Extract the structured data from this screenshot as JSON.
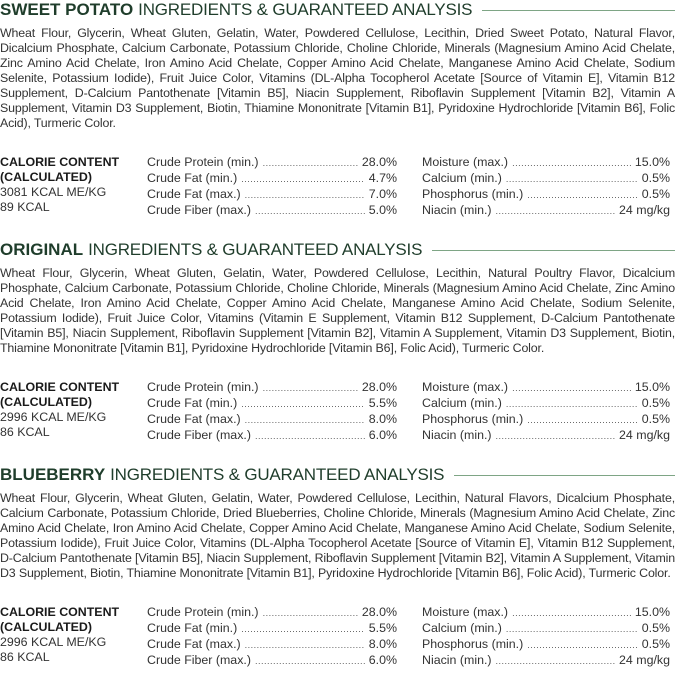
{
  "sections": [
    {
      "name": "SWEET POTATO",
      "title_rest": "INGREDIENTS & GUARANTEED ANALYSIS",
      "ingredients": "Wheat Flour, Glycerin, Wheat Gluten, Gelatin, Water, Powdered Cellulose, Lecithin, Dried Sweet Potato, Natural Flavor, Dicalcium Phosphate, Calcium Carbonate, Potassium Chloride, Choline Chloride, Minerals (Magnesium Amino Acid Chelate, Zinc Amino Acid Chelate, Iron Amino Acid Chelate, Copper Amino Acid Chelate, Manganese Amino Acid Chelate, Sodium Selenite, Potassium Iodide), Fruit Juice Color, Vitamins (DL-Alpha Tocopherol Acetate [Source of Vitamin E], Vitamin B12 Supplement, D-Calcium Pantothenate [Vitamin B5], Niacin Supplement, Riboflavin Supplement [Vitamin B2], Vitamin A Supplement, Vitamin D3 Supplement, Biotin, Thiamine Mononitrate [Vitamin B1], Pyridoxine Hydrochloride [Vitamin B6], Folic Acid), Turmeric Color.",
      "calorie": [
        "CALORIE CONTENT",
        "(CALCULATED)",
        "3081 KCAL ME/KG",
        "89 KCAL"
      ],
      "left": [
        [
          "Crude Protein (min.)",
          "28.0%"
        ],
        [
          "Crude Fat (min.)",
          "4.7%"
        ],
        [
          "Crude Fat (max.)",
          "7.0%"
        ],
        [
          "Crude Fiber (max.)",
          "5.0%"
        ]
      ],
      "right": [
        [
          "Moisture (max.)",
          "15.0%"
        ],
        [
          "Calcium (min.)",
          "0.5%"
        ],
        [
          "Phosphorus (min.)",
          "0.5%"
        ],
        [
          "Niacin (min.)",
          "24 mg/kg"
        ]
      ]
    },
    {
      "name": "ORIGINAL",
      "title_rest": "INGREDIENTS & GUARANTEED ANALYSIS",
      "ingredients": "Wheat Flour, Glycerin, Wheat Gluten, Gelatin, Water, Powdered Cellulose, Lecithin, Natural Poultry Flavor, Dicalcium Phosphate, Calcium Carbonate, Potassium Chloride, Choline Chloride, Minerals (Magnesium Amino Acid Chelate, Zinc Amino Acid Chelate, Iron Amino Acid Chelate, Copper Amino Acid Chelate, Manganese Amino Acid Chelate, Sodium Selenite, Potassium Iodide), Fruit Juice Color, Vitamins (Vitamin E Supplement, Vitamin B12 Supplement, D-Calcium Pantothenate [Vitamin B5], Niacin Supplement, Riboflavin Supplement [Vitamin B2], Vitamin A Supplement, Vitamin D3 Supplement, Biotin, Thiamine Mononitrate [Vitamin B1], Pyridoxine Hydrochloride [Vitamin B6], Folic Acid), Turmeric Color.",
      "calorie": [
        "CALORIE CONTENT",
        "(CALCULATED)",
        "2996 KCAL ME/KG",
        "86 KCAL"
      ],
      "left": [
        [
          "Crude Protein (min.)",
          "28.0%"
        ],
        [
          "Crude Fat (min.)",
          "5.5%"
        ],
        [
          "Crude Fat (max.)",
          "8.0%"
        ],
        [
          "Crude Fiber (max.)",
          "6.0%"
        ]
      ],
      "right": [
        [
          "Moisture (max.)",
          "15.0%"
        ],
        [
          "Calcium (min.)",
          "0.5%"
        ],
        [
          "Phosphorus (min.)",
          "0.5%"
        ],
        [
          "Niacin (min.)",
          "24 mg/kg"
        ]
      ]
    },
    {
      "name": "BLUEBERRY",
      "title_rest": "INGREDIENTS & GUARANTEED ANALYSIS",
      "ingredients": "Wheat Flour, Glycerin, Wheat Gluten, Gelatin, Water, Powdered Cellulose, Lecithin, Natural Flavors, Dicalcium Phosphate, Calcium Carbonate, Potassium Chloride, Dried Blueberries, Choline Chloride, Minerals (Magnesium Amino Acid Chelate, Zinc Amino Acid Chelate, Iron Amino Acid Chelate, Copper Amino Acid Chelate, Manganese Amino Acid Chelate, Sodium Selenite, Potassium Iodide), Fruit Juice Color, Vitamins (DL-Alpha Tocopherol Acetate [Source of Vitamin E], Vitamin B12 Supplement, D-Calcium Pantothenate [Vitamin B5], Niacin Supplement, Riboflavin Supplement [Vitamin B2], Vitamin A Supplement, Vitamin D3 Supplement, Biotin, Thiamine Mononitrate [Vitamin B1], Pyridoxine Hydrochloride [Vitamin B6], Folic Acid), Turmeric Color.",
      "calorie": [
        "CALORIE CONTENT",
        "(CALCULATED)",
        "2996 KCAL ME/KG",
        "86 KCAL"
      ],
      "left": [
        [
          "Crude Protein (min.)",
          "28.0%"
        ],
        [
          "Crude Fat (min.)",
          "5.5%"
        ],
        [
          "Crude Fat (max.)",
          "8.0%"
        ],
        [
          "Crude Fiber (max.)",
          "6.0%"
        ]
      ],
      "right": [
        [
          "Moisture (max.)",
          "15.0%"
        ],
        [
          "Calcium (min.)",
          "0.5%"
        ],
        [
          "Phosphorus (min.)",
          "0.5%"
        ],
        [
          "Niacin (min.)",
          "24 mg/kg"
        ]
      ]
    }
  ]
}
